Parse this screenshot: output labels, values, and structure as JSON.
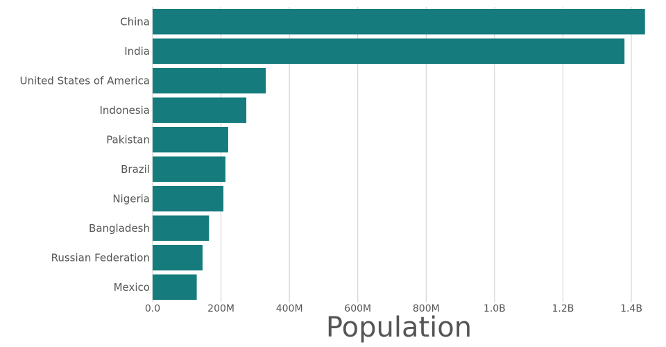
{
  "chart_data": {
    "type": "bar",
    "orientation": "horizontal",
    "categories": [
      "China",
      "India",
      "United States of America",
      "Indonesia",
      "Pakistan",
      "Brazil",
      "Nigeria",
      "Bangladesh",
      "Russian Federation",
      "Mexico"
    ],
    "values": [
      1440000000,
      1380000000,
      331000000,
      274000000,
      221000000,
      213000000,
      207000000,
      165000000,
      146000000,
      129000000
    ],
    "xlabel": "Population",
    "ylabel": "",
    "xlim": [
      0,
      1440000000
    ],
    "xticks": [
      0,
      200000000,
      400000000,
      600000000,
      800000000,
      1000000000,
      1200000000,
      1400000000
    ],
    "xtick_labels": [
      "0.0",
      "200M",
      "400M",
      "600M",
      "800M",
      "1.0B",
      "1.2B",
      "1.4B"
    ],
    "grid": "vertical",
    "bar_color": "#167b7c",
    "text_color": "#555555",
    "grid_color": "#cccccc"
  }
}
